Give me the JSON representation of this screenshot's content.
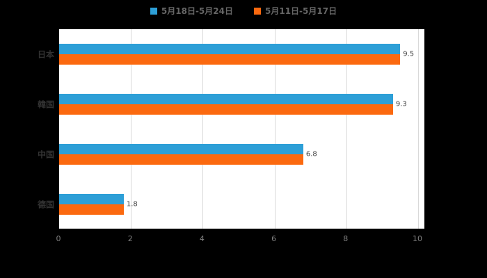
{
  "chart_data": {
    "type": "bar",
    "orientation": "horizontal",
    "title": "",
    "categories": [
      "日本",
      "韓国",
      "中国",
      "德国"
    ],
    "series": [
      {
        "name": "5月18日-5月24日",
        "color": "#2d9fd7",
        "values": [
          9.5,
          9.3,
          6.8,
          1.8
        ]
      },
      {
        "name": "5月11日-5月17日",
        "color": "#fb690f",
        "values": [
          9.5,
          9.3,
          6.8,
          1.8
        ]
      }
    ],
    "value_labels": [
      "9.5",
      "9.3",
      "6.8",
      "1.8"
    ],
    "xlim": [
      0,
      10
    ],
    "xticks": [
      0,
      2,
      4,
      6,
      8,
      10
    ],
    "grid": true,
    "legend_position": "top-center",
    "colors": {
      "background": "#000000",
      "plot_background": "#ffffff",
      "gridline": "#d9d9d9",
      "axis": "#000000",
      "tick_label": "#808080",
      "category_label": "#333333",
      "legend_text": "#666666"
    }
  }
}
